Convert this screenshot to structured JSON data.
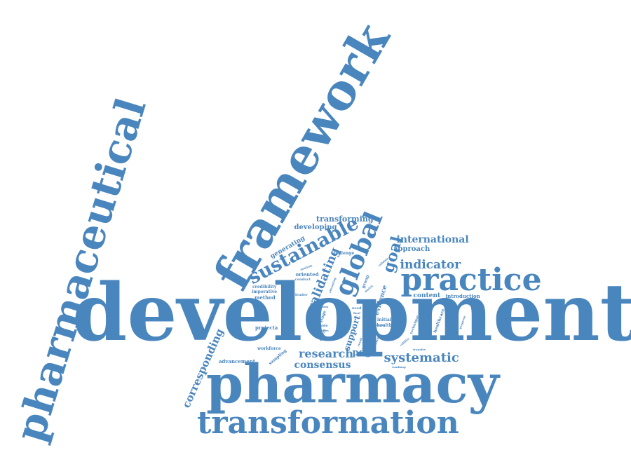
{
  "color": "#4a86be",
  "words": [
    {
      "text": "development",
      "weight": 100
    },
    {
      "text": "pharmacy",
      "weight": 62
    },
    {
      "text": "framework",
      "weight": 60
    },
    {
      "text": "pharmaceutical",
      "weight": 55
    },
    {
      "text": "transformation",
      "weight": 40
    },
    {
      "text": "practice",
      "weight": 38
    },
    {
      "text": "global",
      "weight": 30
    },
    {
      "text": "sustainable",
      "weight": 22
    },
    {
      "text": "validating",
      "weight": 14
    },
    {
      "text": "goal",
      "weight": 18
    },
    {
      "text": "systematic",
      "weight": 16
    },
    {
      "text": "research",
      "weight": 15
    },
    {
      "text": "consensus",
      "weight": 14
    },
    {
      "text": "indicator",
      "weight": 14
    },
    {
      "text": "corresponding",
      "weight": 13
    },
    {
      "text": "international",
      "weight": 12
    },
    {
      "text": "pdgs",
      "weight": 11
    },
    {
      "text": "support",
      "weight": 11
    },
    {
      "text": "transforming",
      "weight": 9
    },
    {
      "text": "developing",
      "weight": 9
    },
    {
      "text": "approach",
      "weight": 9
    },
    {
      "text": "content",
      "weight": 8
    },
    {
      "text": "evidence",
      "weight": 8
    },
    {
      "text": "generating",
      "weight": 8
    },
    {
      "text": "introduction",
      "weight": 6
    },
    {
      "text": "method",
      "weight": 6
    },
    {
      "text": "projecta",
      "weight": 6
    },
    {
      "text": "advancement",
      "weight": 6
    },
    {
      "text": "oriented",
      "weight": 6
    },
    {
      "text": "credibility",
      "weight": 5
    },
    {
      "text": "imperative",
      "weight": 5
    },
    {
      "text": "group",
      "weight": 5
    },
    {
      "text": "sampling",
      "weight": 5
    },
    {
      "text": "workforce",
      "weight": 5
    },
    {
      "text": "challenge",
      "weight": 5
    },
    {
      "text": "initial",
      "weight": 5
    },
    {
      "text": "health",
      "weight": 5
    },
    {
      "text": "healthcare",
      "weight": 5
    },
    {
      "text": "technique",
      "weight": 5
    },
    {
      "text": "stage",
      "weight": 5
    },
    {
      "text": "leader",
      "weight": 4
    },
    {
      "text": "conduct",
      "weight": 4
    },
    {
      "text": "guide",
      "weight": 4
    },
    {
      "text": "expert",
      "weight": 4
    },
    {
      "text": "purposive",
      "weight": 4
    },
    {
      "text": "need",
      "weight": 4
    },
    {
      "text": "final",
      "weight": 4
    },
    {
      "text": "output",
      "weight": 4
    },
    {
      "text": "progress",
      "weight": 4
    },
    {
      "text": "validate",
      "weight": 4
    },
    {
      "text": "roadmap",
      "weight": 4
    },
    {
      "text": "analysis",
      "weight": 3
    },
    {
      "text": "advancing",
      "weight": 3
    },
    {
      "text": "validity",
      "weight": 3
    },
    {
      "text": "transfer",
      "weight": 3
    },
    {
      "text": "nominal",
      "weight": 3
    },
    {
      "text": "series",
      "weight": 3
    },
    {
      "text": "result",
      "weight": 3
    },
    {
      "text": "matrix",
      "weight": 3
    },
    {
      "text": "form",
      "weight": 3
    }
  ]
}
